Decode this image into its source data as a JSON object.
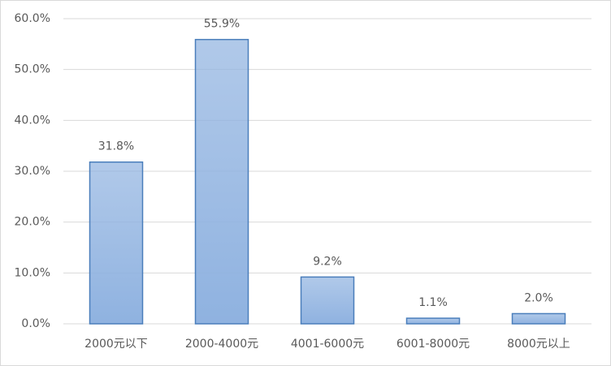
{
  "chart_data": {
    "type": "bar",
    "categories": [
      "2000元以下",
      "2000-4000元",
      "4001-6000元",
      "6001-8000元",
      "8000元以上"
    ],
    "values": [
      31.8,
      55.9,
      9.2,
      1.1,
      2.0
    ],
    "value_labels": [
      "31.8%",
      "55.9%",
      "9.2%",
      "1.1%",
      "2.0%"
    ],
    "color": "#8fb2e0",
    "ylim": [
      0,
      60
    ],
    "yticks": [
      {
        "value": 0,
        "label": "0.0%"
      },
      {
        "value": 10,
        "label": "10.0%"
      },
      {
        "value": 20,
        "label": "20.0%"
      },
      {
        "value": 30,
        "label": "30.0%"
      },
      {
        "value": 40,
        "label": "40.0%"
      },
      {
        "value": 50,
        "label": "50.0%"
      },
      {
        "value": 60,
        "label": "60.0%"
      }
    ],
    "grid": true
  }
}
